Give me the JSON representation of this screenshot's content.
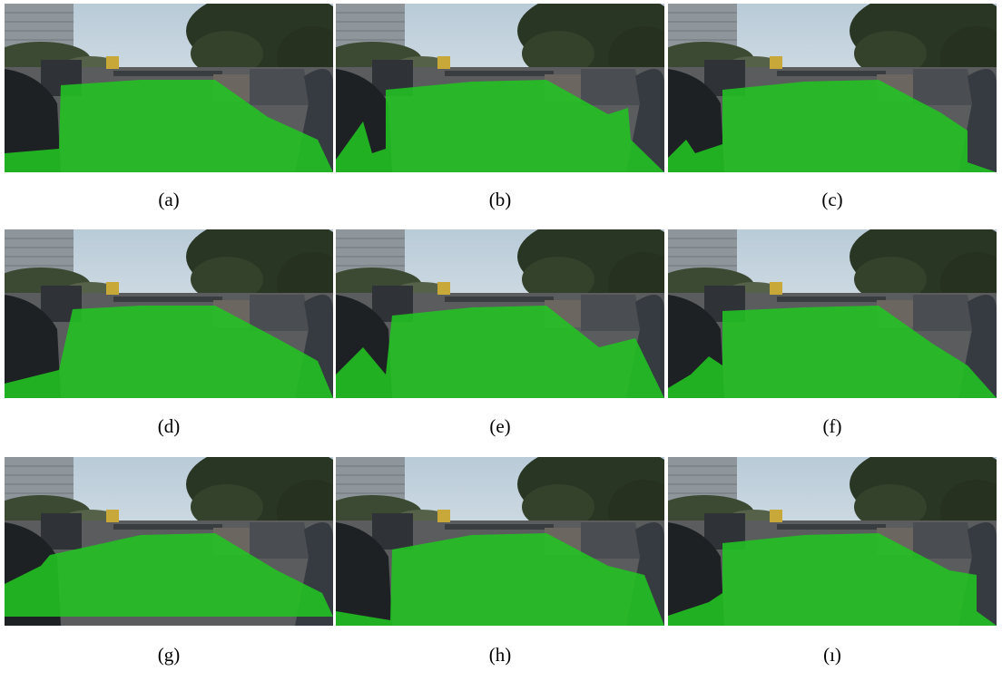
{
  "figure": {
    "panels": [
      {
        "caption": "(a)"
      },
      {
        "caption": "(b)"
      },
      {
        "caption": "(c)"
      },
      {
        "caption": "(d)"
      },
      {
        "caption": "(e)"
      },
      {
        "caption": "(f)"
      },
      {
        "caption": "(g)"
      },
      {
        "caption": "(h)"
      },
      {
        "caption": "(ı)"
      }
    ]
  }
}
